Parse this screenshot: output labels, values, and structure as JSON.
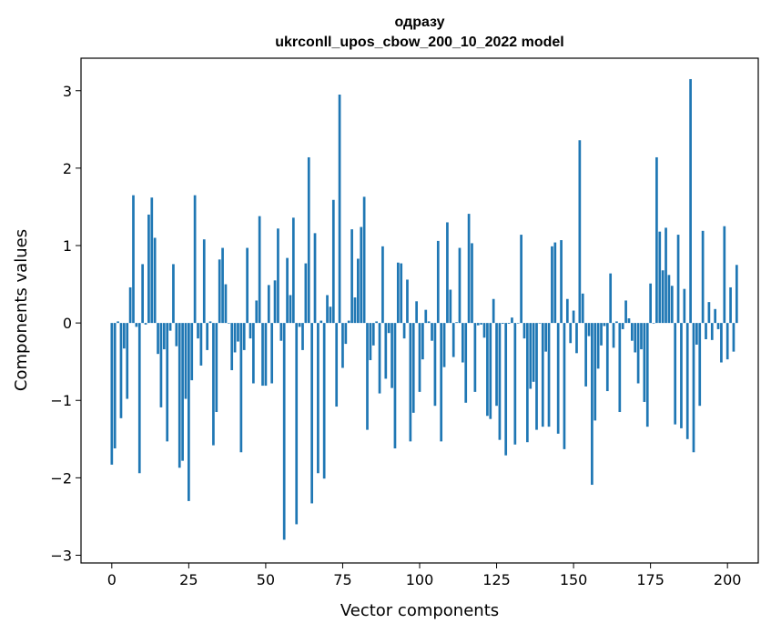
{
  "chart_data": {
    "type": "bar",
    "title_line1": "одразу",
    "title_line2": "ukrconll_upos_cbow_200_10_2022 model",
    "xlabel": "Vector components",
    "ylabel": "Components values",
    "xlim": [
      -10,
      210
    ],
    "ylim": [
      -3.1,
      3.42
    ],
    "xticks": [
      0,
      25,
      50,
      75,
      100,
      125,
      150,
      175,
      200
    ],
    "yticks": [
      -3,
      -2,
      -1,
      0,
      1,
      2,
      3
    ],
    "ytick_labels": [
      "−3",
      "−2",
      "−1",
      "0",
      "1",
      "2",
      "3"
    ],
    "bar_color": "#1f77b4",
    "grid": false,
    "legend": "none",
    "values": [
      -1.83,
      -1.62,
      0.02,
      -1.23,
      -0.33,
      -0.98,
      0.46,
      1.65,
      -0.05,
      -1.94,
      0.76,
      -0.02,
      1.4,
      1.62,
      1.1,
      -0.4,
      -1.09,
      -0.34,
      -1.53,
      -0.1,
      0.76,
      -0.3,
      -1.87,
      -1.78,
      -0.98,
      -2.3,
      -0.74,
      1.65,
      -0.2,
      -0.55,
      1.08,
      -0.35,
      0.02,
      -1.58,
      -1.15,
      0.82,
      0.97,
      0.5,
      0.0,
      -0.61,
      -0.38,
      -0.24,
      -1.67,
      -0.35,
      0.97,
      -0.2,
      -0.78,
      0.29,
      1.38,
      -0.81,
      -0.81,
      0.49,
      -0.78,
      0.55,
      1.22,
      -0.23,
      -2.8,
      0.84,
      0.36,
      1.36,
      -2.6,
      -0.05,
      -0.35,
      0.77,
      2.14,
      -2.33,
      1.16,
      -1.94,
      0.03,
      -2.01,
      0.36,
      0.21,
      1.59,
      -1.08,
      2.95,
      -0.58,
      -0.27,
      0.03,
      1.21,
      0.33,
      0.83,
      1.24,
      1.63,
      -1.38,
      -0.48,
      -0.29,
      0.02,
      -0.91,
      0.99,
      -0.72,
      -0.13,
      -0.84,
      -1.62,
      0.78,
      0.77,
      -0.2,
      0.56,
      -1.53,
      -1.16,
      0.28,
      -0.89,
      -0.47,
      0.17,
      0.02,
      -0.23,
      -1.07,
      1.06,
      -1.53,
      -0.57,
      1.3,
      0.43,
      -0.44,
      0.01,
      0.97,
      -0.51,
      -1.03,
      1.41,
      1.03,
      -0.89,
      -0.03,
      -0.02,
      -0.19,
      -1.2,
      -1.24,
      0.31,
      -1.07,
      -1.51,
      -0.01,
      -1.71,
      -0.01,
      0.07,
      -1.57,
      0.0,
      1.14,
      -0.2,
      -1.54,
      -0.85,
      -0.76,
      -1.38,
      0.0,
      -1.34,
      -0.37,
      -1.34,
      0.99,
      1.04,
      -1.43,
      1.07,
      -1.63,
      0.31,
      -0.26,
      0.16,
      -0.39,
      2.36,
      0.38,
      -0.82,
      -0.17,
      -2.09,
      -1.26,
      -0.59,
      -0.29,
      -0.04,
      -0.88,
      0.64,
      -0.32,
      0.02,
      -1.15,
      -0.08,
      0.29,
      0.06,
      -0.23,
      -0.38,
      -0.78,
      -0.34,
      -1.02,
      -1.34,
      0.51,
      0.0,
      2.14,
      1.18,
      0.68,
      1.23,
      0.62,
      0.48,
      -1.31,
      1.14,
      -1.36,
      0.44,
      -1.5,
      3.15,
      -1.67,
      -0.28,
      -1.07,
      1.19,
      -0.21,
      0.27,
      -0.22,
      0.18,
      -0.08,
      -0.51,
      1.25,
      -0.47,
      0.46,
      -0.37,
      0.75
    ]
  }
}
